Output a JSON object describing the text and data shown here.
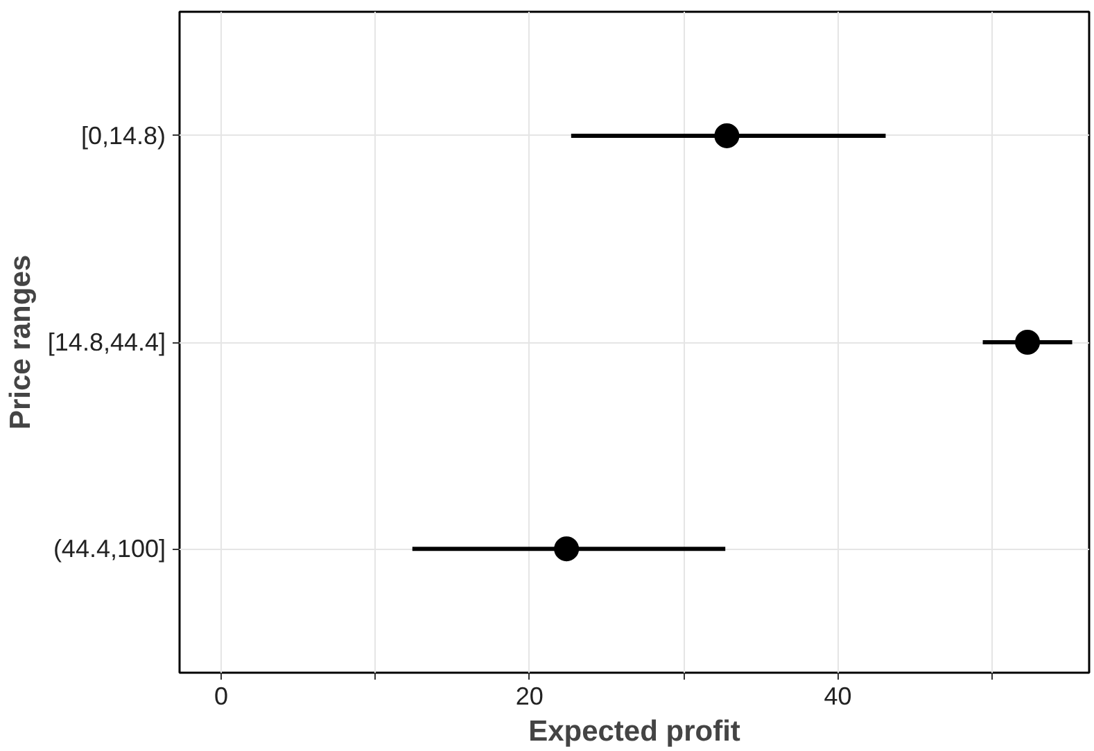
{
  "chart_data": {
    "type": "scatter",
    "orientation": "horizontal",
    "xlabel": "Expected profit",
    "ylabel": "Price ranges",
    "categories": [
      "[0,14.8)",
      "[14.8,44.4]",
      "(44.4,100]"
    ],
    "values": [
      32.8,
      52.3,
      22.4
    ],
    "errors": [
      [
        22.7,
        43.1
      ],
      [
        49.4,
        55.2
      ],
      [
        12.4,
        32.7
      ]
    ],
    "color": "#000000",
    "marker": "circle",
    "grid": true,
    "xlim": [
      -2.7,
      56.3
    ],
    "xticks": [
      0,
      {
        "value": 10,
        "label": null
      },
      20,
      {
        "value": 30,
        "label": null
      },
      40,
      {
        "value": 50,
        "label": null
      }
    ]
  }
}
